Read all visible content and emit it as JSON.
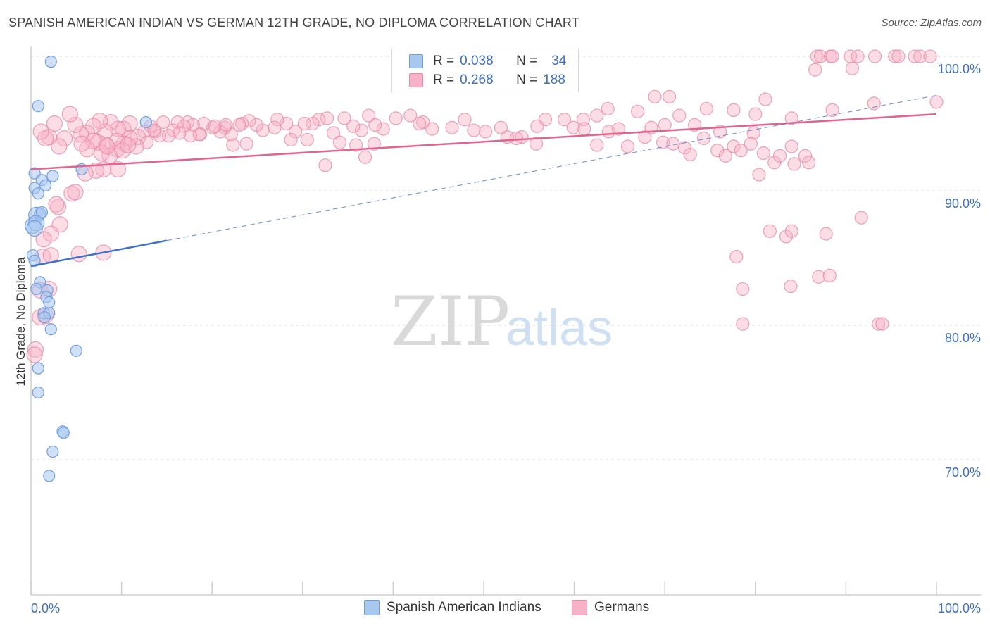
{
  "title": "SPANISH AMERICAN INDIAN VS GERMAN 12TH GRADE, NO DIPLOMA CORRELATION CHART",
  "source": "Source: ZipAtlas.com",
  "watermark": {
    "zip": "ZIP",
    "atlas": "atlas"
  },
  "colors": {
    "blue_fill": "#a9c8f0",
    "blue_stroke": "#6f9ee0",
    "blue_line": "#3c72c8",
    "pink_fill": "#f6b3c8",
    "pink_stroke": "#ea8aa9",
    "pink_line": "#e2638f",
    "grid": "#dddddd",
    "tick_label": "#3d6fc4"
  },
  "legend": {
    "rows": [
      {
        "r_label": "R =",
        "r_value": "0.038",
        "n_label": "N =",
        "n_value": "34"
      },
      {
        "r_label": "R =",
        "r_value": "0.268",
        "n_label": "N =",
        "n_value": "188"
      }
    ]
  },
  "bottom_legend": {
    "series1": "Spanish American Indians",
    "series2": "Germans"
  },
  "chart_data": {
    "type": "scatter",
    "title": "SPANISH AMERICAN INDIAN VS GERMAN 12TH GRADE, NO DIPLOMA CORRELATION CHART",
    "xlabel": "",
    "ylabel": "12th Grade, No Diploma",
    "xlim": [
      0,
      100
    ],
    "ylim": [
      60,
      101.5
    ],
    "x_tick_labels": [
      "0.0%",
      "100.0%"
    ],
    "y_ticks": [
      70,
      80,
      90,
      100
    ],
    "y_tick_labels": [
      "70.0%",
      "80.0%",
      "90.0%",
      "100.0%"
    ],
    "series": [
      {
        "name": "Spanish American Indians",
        "r": 0.038,
        "n": 34,
        "trend_solid": [
          [
            0,
            84.4
          ],
          [
            15,
            86.3
          ]
        ],
        "trend_dashed": [
          [
            15,
            86.3
          ],
          [
            100,
            97.1
          ]
        ],
        "points": [
          [
            2.2,
            99.6
          ],
          [
            0.8,
            96.3
          ],
          [
            12.7,
            95.1
          ],
          [
            0.4,
            91.3
          ],
          [
            2.4,
            91.1
          ],
          [
            5.6,
            91.6
          ],
          [
            1.2,
            90.8
          ],
          [
            1.6,
            90.4
          ],
          [
            0.4,
            90.2
          ],
          [
            0.8,
            89.8
          ],
          [
            0.6,
            88.2
          ],
          [
            1.0,
            88.3
          ],
          [
            0.2,
            87.4
          ],
          [
            0.6,
            87.6
          ],
          [
            0.2,
            85.2
          ],
          [
            0.4,
            84.8
          ],
          [
            1.0,
            83.2
          ],
          [
            0.6,
            82.7
          ],
          [
            1.8,
            82.6
          ],
          [
            1.7,
            82.1
          ],
          [
            2.0,
            81.7
          ],
          [
            1.4,
            80.9
          ],
          [
            2.0,
            80.9
          ],
          [
            1.5,
            80.6
          ],
          [
            2.2,
            79.7
          ],
          [
            5.0,
            78.1
          ],
          [
            0.8,
            76.8
          ],
          [
            0.8,
            75.0
          ],
          [
            3.5,
            72.1
          ],
          [
            3.6,
            72.0
          ],
          [
            2.4,
            70.6
          ],
          [
            2.0,
            68.8
          ],
          [
            0.4,
            87.2
          ],
          [
            1.2,
            88.4
          ]
        ]
      },
      {
        "name": "Germans",
        "r": 0.268,
        "n": 188,
        "trend": [
          [
            0,
            91.6
          ],
          [
            100,
            95.7
          ]
        ],
        "points": [
          [
            86.8,
            100
          ],
          [
            87.2,
            100
          ],
          [
            88.3,
            100
          ],
          [
            88.5,
            100
          ],
          [
            90.5,
            100
          ],
          [
            91.3,
            100
          ],
          [
            93.2,
            100
          ],
          [
            95.4,
            100
          ],
          [
            95.8,
            100
          ],
          [
            97.6,
            100
          ],
          [
            98.2,
            100
          ],
          [
            99.3,
            100
          ],
          [
            86.6,
            99.0
          ],
          [
            90.7,
            99.1
          ],
          [
            100,
            96.6
          ],
          [
            93.1,
            96.5
          ],
          [
            68.9,
            97.0
          ],
          [
            70.5,
            97.0
          ],
          [
            67.0,
            95.9
          ],
          [
            63.7,
            96.1
          ],
          [
            74.6,
            96.1
          ],
          [
            77.6,
            96.0
          ],
          [
            70.0,
            94.9
          ],
          [
            81.1,
            96.8
          ],
          [
            80.0,
            95.7
          ],
          [
            71.6,
            95.6
          ],
          [
            73.3,
            94.9
          ],
          [
            76.1,
            94.4
          ],
          [
            79.8,
            94.3
          ],
          [
            84.0,
            95.4
          ],
          [
            88.5,
            96.0
          ],
          [
            62.5,
            95.6
          ],
          [
            61.0,
            95.3
          ],
          [
            58.9,
            95.3
          ],
          [
            56.8,
            95.3
          ],
          [
            55.9,
            94.8
          ],
          [
            55.8,
            93.5
          ],
          [
            54.2,
            94.0
          ],
          [
            52.6,
            94.0
          ],
          [
            53.6,
            93.9
          ],
          [
            51.9,
            94.7
          ],
          [
            50.2,
            94.4
          ],
          [
            48.9,
            94.5
          ],
          [
            47.9,
            95.3
          ],
          [
            46.5,
            94.7
          ],
          [
            44.3,
            94.6
          ],
          [
            43.3,
            95.1
          ],
          [
            42.9,
            95.0
          ],
          [
            41.9,
            95.6
          ],
          [
            40.3,
            95.4
          ],
          [
            38.9,
            94.6
          ],
          [
            38.0,
            94.9
          ],
          [
            37.3,
            95.6
          ],
          [
            36.5,
            94.5
          ],
          [
            35.6,
            94.8
          ],
          [
            34.6,
            95.4
          ],
          [
            33.4,
            94.3
          ],
          [
            32.7,
            95.4
          ],
          [
            31.8,
            95.3
          ],
          [
            31.1,
            95.0
          ],
          [
            30.2,
            95.0
          ],
          [
            29.2,
            94.4
          ],
          [
            28.7,
            93.8
          ],
          [
            28.2,
            95.0
          ],
          [
            27.2,
            95.3
          ],
          [
            26.9,
            94.7
          ],
          [
            25.6,
            94.5
          ],
          [
            24.9,
            94.9
          ],
          [
            24.1,
            95.2
          ],
          [
            23.3,
            95.0
          ],
          [
            23.0,
            94.9
          ],
          [
            22.1,
            94.2
          ],
          [
            21.4,
            94.7
          ],
          [
            20.9,
            94.4
          ],
          [
            20.1,
            94.7
          ],
          [
            19.1,
            95.0
          ],
          [
            18.7,
            94.2
          ],
          [
            17.9,
            94.9
          ],
          [
            17.3,
            95.1
          ],
          [
            16.9,
            94.8
          ],
          [
            16.2,
            95.1
          ],
          [
            15.7,
            94.5
          ],
          [
            14.6,
            95.1
          ],
          [
            13.7,
            94.4
          ],
          [
            13.2,
            94.8
          ],
          [
            12.5,
            94.4
          ],
          [
            11.8,
            94.0
          ],
          [
            10.9,
            95.0
          ],
          [
            10.2,
            94.6
          ],
          [
            9.6,
            94.6
          ],
          [
            8.8,
            95.1
          ],
          [
            8.2,
            94.4
          ],
          [
            7.6,
            95.2
          ],
          [
            6.9,
            94.8
          ],
          [
            6.2,
            94.3
          ],
          [
            5.5,
            94.2
          ],
          [
            4.9,
            94.9
          ],
          [
            4.3,
            95.7
          ],
          [
            3.7,
            93.9
          ],
          [
            3.1,
            93.3
          ],
          [
            2.6,
            95.0
          ],
          [
            2.0,
            94.0
          ],
          [
            1.6,
            93.9
          ],
          [
            1.1,
            94.4
          ],
          [
            59.9,
            94.7
          ],
          [
            61.1,
            94.6
          ],
          [
            62.5,
            93.4
          ],
          [
            63.8,
            94.4
          ],
          [
            64.9,
            94.6
          ],
          [
            65.9,
            93.3
          ],
          [
            67.8,
            94.0
          ],
          [
            68.5,
            94.7
          ],
          [
            69.8,
            93.6
          ],
          [
            70.9,
            93.5
          ],
          [
            72.2,
            93.2
          ],
          [
            72.8,
            92.7
          ],
          [
            74.3,
            93.9
          ],
          [
            75.8,
            93.0
          ],
          [
            76.7,
            92.6
          ],
          [
            77.6,
            93.3
          ],
          [
            78.4,
            93.0
          ],
          [
            79.5,
            93.5
          ],
          [
            80.9,
            92.8
          ],
          [
            82.1,
            92.1
          ],
          [
            82.7,
            92.6
          ],
          [
            84.0,
            93.3
          ],
          [
            85.5,
            92.6
          ],
          [
            32.5,
            91.9
          ],
          [
            34.1,
            93.6
          ],
          [
            35.9,
            93.4
          ],
          [
            36.9,
            92.5
          ],
          [
            37.9,
            93.5
          ],
          [
            30.5,
            93.8
          ],
          [
            23.8,
            93.5
          ],
          [
            22.3,
            93.4
          ],
          [
            21.5,
            94.9
          ],
          [
            20.3,
            94.8
          ],
          [
            18.6,
            94.2
          ],
          [
            17.6,
            94.1
          ],
          [
            16.4,
            94.3
          ],
          [
            15.2,
            94.1
          ],
          [
            14.2,
            94.1
          ],
          [
            13.6,
            94.5
          ],
          [
            12.8,
            93.6
          ],
          [
            11.6,
            93.3
          ],
          [
            10.9,
            93.9
          ],
          [
            10.3,
            93.5
          ],
          [
            9.5,
            93.1
          ],
          [
            8.3,
            93.4
          ],
          [
            7.4,
            93.6
          ],
          [
            6.9,
            93.7
          ],
          [
            6.2,
            93.1
          ],
          [
            5.6,
            93.5
          ],
          [
            8.7,
            92.6
          ],
          [
            9.5,
            93.7
          ],
          [
            10.1,
            93.0
          ],
          [
            10.7,
            93.4
          ],
          [
            9.6,
            91.6
          ],
          [
            8.0,
            91.6
          ],
          [
            7.2,
            91.5
          ],
          [
            6.0,
            91.3
          ],
          [
            4.5,
            89.8
          ],
          [
            4.9,
            89.9
          ],
          [
            3.0,
            88.8
          ],
          [
            2.8,
            89.0
          ],
          [
            3.2,
            87.5
          ],
          [
            2.2,
            86.8
          ],
          [
            1.4,
            86.4
          ],
          [
            7.8,
            92.8
          ],
          [
            8.4,
            93.3
          ],
          [
            91.7,
            88.0
          ],
          [
            85.9,
            92.1
          ],
          [
            84.3,
            92.0
          ],
          [
            80.4,
            91.2
          ],
          [
            81.6,
            87.0
          ],
          [
            83.4,
            86.6
          ],
          [
            84.0,
            87.0
          ],
          [
            87.8,
            86.8
          ],
          [
            87.0,
            83.6
          ],
          [
            88.2,
            83.7
          ],
          [
            83.9,
            82.9
          ],
          [
            78.6,
            82.7
          ],
          [
            77.9,
            85.1
          ],
          [
            78.6,
            80.1
          ],
          [
            93.6,
            80.1
          ],
          [
            94.0,
            80.1
          ],
          [
            0.5,
            78.2
          ],
          [
            0.4,
            77.8
          ],
          [
            2.0,
            82.7
          ],
          [
            1.0,
            82.6
          ],
          [
            1.0,
            80.6
          ],
          [
            1.6,
            80.7
          ],
          [
            1.3,
            85.1
          ],
          [
            2.2,
            85.2
          ],
          [
            5.3,
            85.3
          ],
          [
            8.0,
            85.4
          ]
        ]
      }
    ]
  }
}
